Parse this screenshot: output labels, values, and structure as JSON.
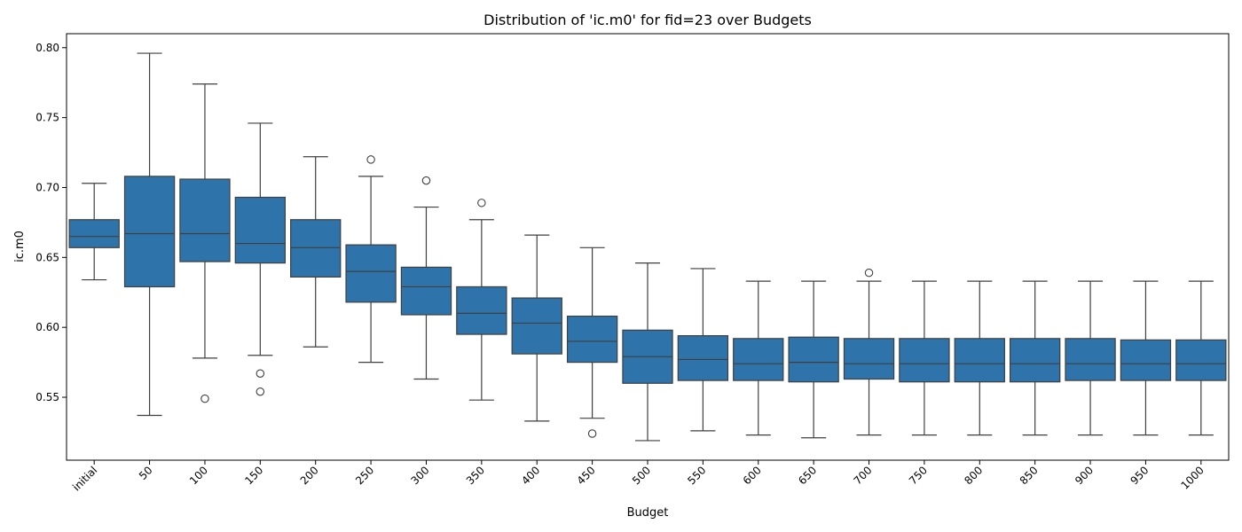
{
  "chart_data": {
    "type": "box",
    "title": "Distribution of 'ic.m0' for fid=23 over Budgets",
    "xlabel": "Budget",
    "ylabel": "ic.m0",
    "ylim": [
      0.505,
      0.81
    ],
    "yticks": [
      "0.55",
      "0.60",
      "0.65",
      "0.70",
      "0.75",
      "0.80"
    ],
    "grid": false,
    "box_color": "#2e74aa",
    "line_color": "#3f3f3f",
    "categories": [
      "initial",
      "50",
      "100",
      "150",
      "200",
      "250",
      "300",
      "350",
      "400",
      "450",
      "500",
      "550",
      "600",
      "650",
      "700",
      "750",
      "800",
      "850",
      "900",
      "950",
      "1000"
    ],
    "boxes": [
      {
        "whisker_low": 0.634,
        "q1": 0.657,
        "median": 0.665,
        "q3": 0.677,
        "whisker_high": 0.703,
        "outliers": []
      },
      {
        "whisker_low": 0.537,
        "q1": 0.629,
        "median": 0.667,
        "q3": 0.708,
        "whisker_high": 0.796,
        "outliers": []
      },
      {
        "whisker_low": 0.578,
        "q1": 0.647,
        "median": 0.667,
        "q3": 0.706,
        "whisker_high": 0.774,
        "outliers": [
          0.549
        ]
      },
      {
        "whisker_low": 0.58,
        "q1": 0.646,
        "median": 0.66,
        "q3": 0.693,
        "whisker_high": 0.746,
        "outliers": [
          0.567,
          0.554
        ]
      },
      {
        "whisker_low": 0.586,
        "q1": 0.636,
        "median": 0.657,
        "q3": 0.677,
        "whisker_high": 0.722,
        "outliers": []
      },
      {
        "whisker_low": 0.575,
        "q1": 0.618,
        "median": 0.64,
        "q3": 0.659,
        "whisker_high": 0.708,
        "outliers": [
          0.72
        ]
      },
      {
        "whisker_low": 0.563,
        "q1": 0.609,
        "median": 0.629,
        "q3": 0.643,
        "whisker_high": 0.686,
        "outliers": [
          0.705
        ]
      },
      {
        "whisker_low": 0.548,
        "q1": 0.595,
        "median": 0.61,
        "q3": 0.629,
        "whisker_high": 0.677,
        "outliers": [
          0.689
        ]
      },
      {
        "whisker_low": 0.533,
        "q1": 0.581,
        "median": 0.603,
        "q3": 0.621,
        "whisker_high": 0.666,
        "outliers": []
      },
      {
        "whisker_low": 0.535,
        "q1": 0.575,
        "median": 0.59,
        "q3": 0.608,
        "whisker_high": 0.657,
        "outliers": [
          0.524
        ]
      },
      {
        "whisker_low": 0.519,
        "q1": 0.56,
        "median": 0.579,
        "q3": 0.598,
        "whisker_high": 0.646,
        "outliers": []
      },
      {
        "whisker_low": 0.526,
        "q1": 0.562,
        "median": 0.577,
        "q3": 0.594,
        "whisker_high": 0.642,
        "outliers": []
      },
      {
        "whisker_low": 0.523,
        "q1": 0.562,
        "median": 0.574,
        "q3": 0.592,
        "whisker_high": 0.633,
        "outliers": []
      },
      {
        "whisker_low": 0.521,
        "q1": 0.561,
        "median": 0.575,
        "q3": 0.593,
        "whisker_high": 0.633,
        "outliers": []
      },
      {
        "whisker_low": 0.523,
        "q1": 0.563,
        "median": 0.574,
        "q3": 0.592,
        "whisker_high": 0.633,
        "outliers": [
          0.639
        ]
      },
      {
        "whisker_low": 0.523,
        "q1": 0.561,
        "median": 0.574,
        "q3": 0.592,
        "whisker_high": 0.633,
        "outliers": []
      },
      {
        "whisker_low": 0.523,
        "q1": 0.561,
        "median": 0.574,
        "q3": 0.592,
        "whisker_high": 0.633,
        "outliers": []
      },
      {
        "whisker_low": 0.523,
        "q1": 0.561,
        "median": 0.574,
        "q3": 0.592,
        "whisker_high": 0.633,
        "outliers": []
      },
      {
        "whisker_low": 0.523,
        "q1": 0.562,
        "median": 0.574,
        "q3": 0.592,
        "whisker_high": 0.633,
        "outliers": []
      },
      {
        "whisker_low": 0.523,
        "q1": 0.562,
        "median": 0.574,
        "q3": 0.591,
        "whisker_high": 0.633,
        "outliers": []
      },
      {
        "whisker_low": 0.523,
        "q1": 0.562,
        "median": 0.574,
        "q3": 0.591,
        "whisker_high": 0.633,
        "outliers": []
      }
    ]
  }
}
